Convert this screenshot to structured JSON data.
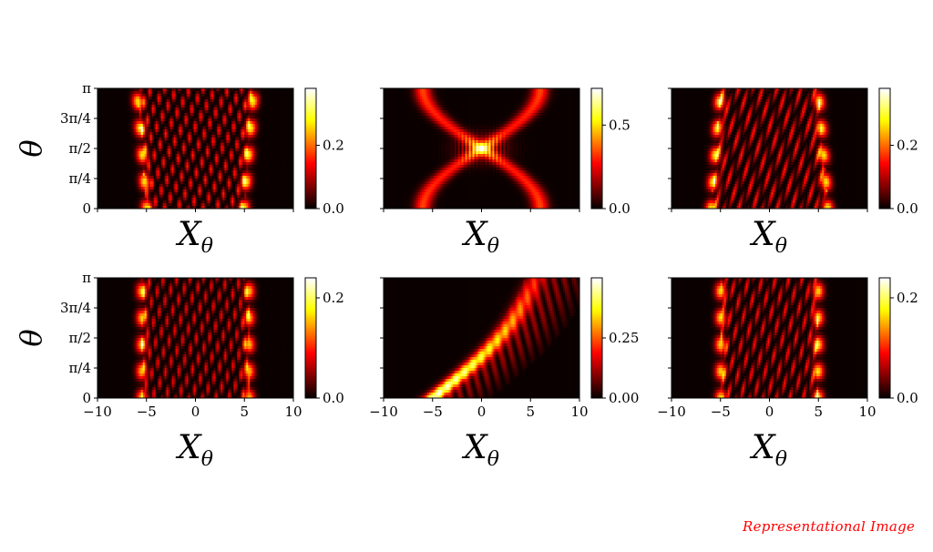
{
  "watermark": "Representational Image",
  "chart_data": [
    {
      "type": "heatmap",
      "panel": "top-left",
      "xlabel": "X_θ",
      "ylabel": "θ",
      "xlim": [
        -10,
        10
      ],
      "ylim": [
        0,
        3.1416
      ],
      "x_tick_labels_shown": false,
      "y_ticks": [
        "0",
        "π/4",
        "π/2",
        "3π/4",
        "π"
      ],
      "colorbar": {
        "range": [
          0,
          0.38
        ],
        "ticks": [
          "0.0",
          "0.2"
        ]
      },
      "colormap": "hot",
      "pattern": "bands",
      "features": {
        "edges_bottom": [
          -5,
          5
        ],
        "edges_top": [
          -6,
          6
        ],
        "fringe_freq": 4.0,
        "slant": 0.5
      }
    },
    {
      "type": "heatmap",
      "panel": "top-middle",
      "xlabel": "X_θ",
      "xlim": [
        -10,
        10
      ],
      "ylim": [
        0,
        3.1416
      ],
      "x_tick_labels_shown": false,
      "colorbar": {
        "range": [
          0,
          0.72
        ],
        "ticks": [
          "0.0",
          "0.5"
        ]
      },
      "colormap": "hot",
      "pattern": "cross",
      "features": {
        "amplitude": 6,
        "fringe_freq": 8.0
      }
    },
    {
      "type": "heatmap",
      "panel": "top-right",
      "xlabel": "X_θ",
      "xlim": [
        -10,
        10
      ],
      "ylim": [
        0,
        3.1416
      ],
      "x_tick_labels_shown": false,
      "colorbar": {
        "range": [
          0,
          0.38
        ],
        "ticks": [
          "0.0",
          "0.2"
        ]
      },
      "colormap": "hot",
      "pattern": "bands",
      "features": {
        "edges_bottom": [
          -6,
          6
        ],
        "edges_top": [
          -5,
          5
        ],
        "fringe_freq": 4.0,
        "slant": -0.5
      }
    },
    {
      "type": "heatmap",
      "panel": "bottom-left",
      "xlabel": "X_θ",
      "ylabel": "θ",
      "xlim": [
        -10,
        10
      ],
      "ylim": [
        0,
        3.1416
      ],
      "x_ticks": [
        "−10",
        "−5",
        "0",
        "5",
        "10"
      ],
      "y_ticks": [
        "0",
        "π/4",
        "π/2",
        "3π/4",
        "π"
      ],
      "colorbar": {
        "range": [
          0,
          0.24
        ],
        "ticks": [
          "0.0",
          "0.2"
        ]
      },
      "colormap": "hot",
      "pattern": "bands",
      "features": {
        "edges_bottom": [
          -5.5,
          5.5
        ],
        "edges_top": [
          -5.5,
          5.5
        ],
        "fringe_freq": 4.5,
        "slant": 0.3
      }
    },
    {
      "type": "heatmap",
      "panel": "bottom-middle",
      "xlabel": "X_θ",
      "xlim": [
        -10,
        10
      ],
      "ylim": [
        0,
        3.1416
      ],
      "x_ticks": [
        "−10",
        "−5",
        "0",
        "5",
        "10"
      ],
      "colorbar": {
        "range": [
          0,
          0.5
        ],
        "ticks": [
          "0.00",
          "0.25"
        ]
      },
      "colormap": "hot",
      "pattern": "swirl",
      "features": {
        "start": -5,
        "end": 5.5,
        "fringe_freq": 3.0
      }
    },
    {
      "type": "heatmap",
      "panel": "bottom-right",
      "xlabel": "X_θ",
      "xlim": [
        -10,
        10
      ],
      "ylim": [
        0,
        3.1416
      ],
      "x_ticks": [
        "−10",
        "−5",
        "0",
        "5",
        "10"
      ],
      "colorbar": {
        "range": [
          0,
          0.24
        ],
        "ticks": [
          "0.0",
          "0.2"
        ]
      },
      "colormap": "hot",
      "pattern": "bands",
      "features": {
        "edges_bottom": [
          -5,
          5
        ],
        "edges_top": [
          -5,
          5
        ],
        "fringe_freq": 4.5,
        "slant": -0.3
      }
    }
  ]
}
